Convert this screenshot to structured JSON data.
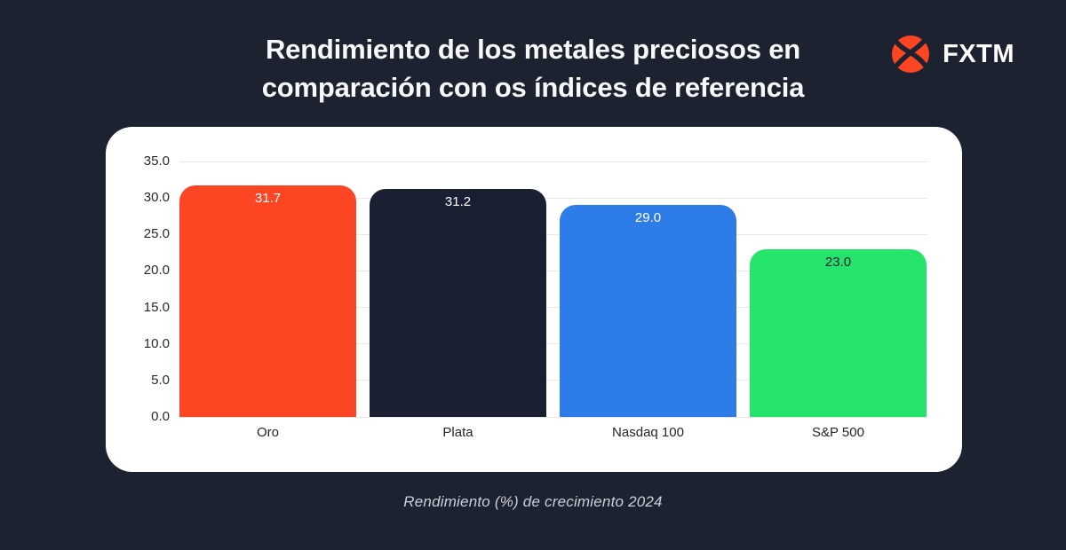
{
  "title": {
    "line1": "Rendimiento de los metales preciosos en",
    "line2": "comparación con os índices de referencia"
  },
  "logo": {
    "text": "FXTM",
    "circle_color": "#FB4523",
    "cutout_color": "#1D2231"
  },
  "caption": {
    "text": "Rendimiento (%) de crecimiento 2024"
  },
  "colors": {
    "background": "#1D2231",
    "card": "#FFFFFF",
    "gridline": "#E8E8EA",
    "title_text": "#F7F8FA",
    "caption_text": "#CBCFD8"
  },
  "chart_data": {
    "type": "bar",
    "categories": [
      "Oro",
      "Plata",
      "Nasdaq 100",
      "S&P 500"
    ],
    "values": [
      31.7,
      31.2,
      29.0,
      23.0
    ],
    "value_labels": [
      "31.7",
      "31.2",
      "29.0",
      "23.0"
    ],
    "bar_colors": [
      "#FB4523",
      "#1A2031",
      "#2E7CE8",
      "#26E36D"
    ],
    "value_label_colors": [
      "#FFFFFF",
      "#FFFFFF",
      "#FFFFFF",
      "#1A2031"
    ],
    "title": "Rendimiento de los metales preciosos en comparación con os índices de referencia",
    "xlabel": "Rendimiento (%) de crecimiento 2024",
    "ylabel": "",
    "ylim": [
      0,
      35
    ],
    "ytick_step": 5,
    "ytick_labels": [
      "0.0",
      "5.0",
      "10.0",
      "15.0",
      "20.0",
      "25.0",
      "30.0",
      "35.0"
    ],
    "grid": true,
    "legend": false
  }
}
